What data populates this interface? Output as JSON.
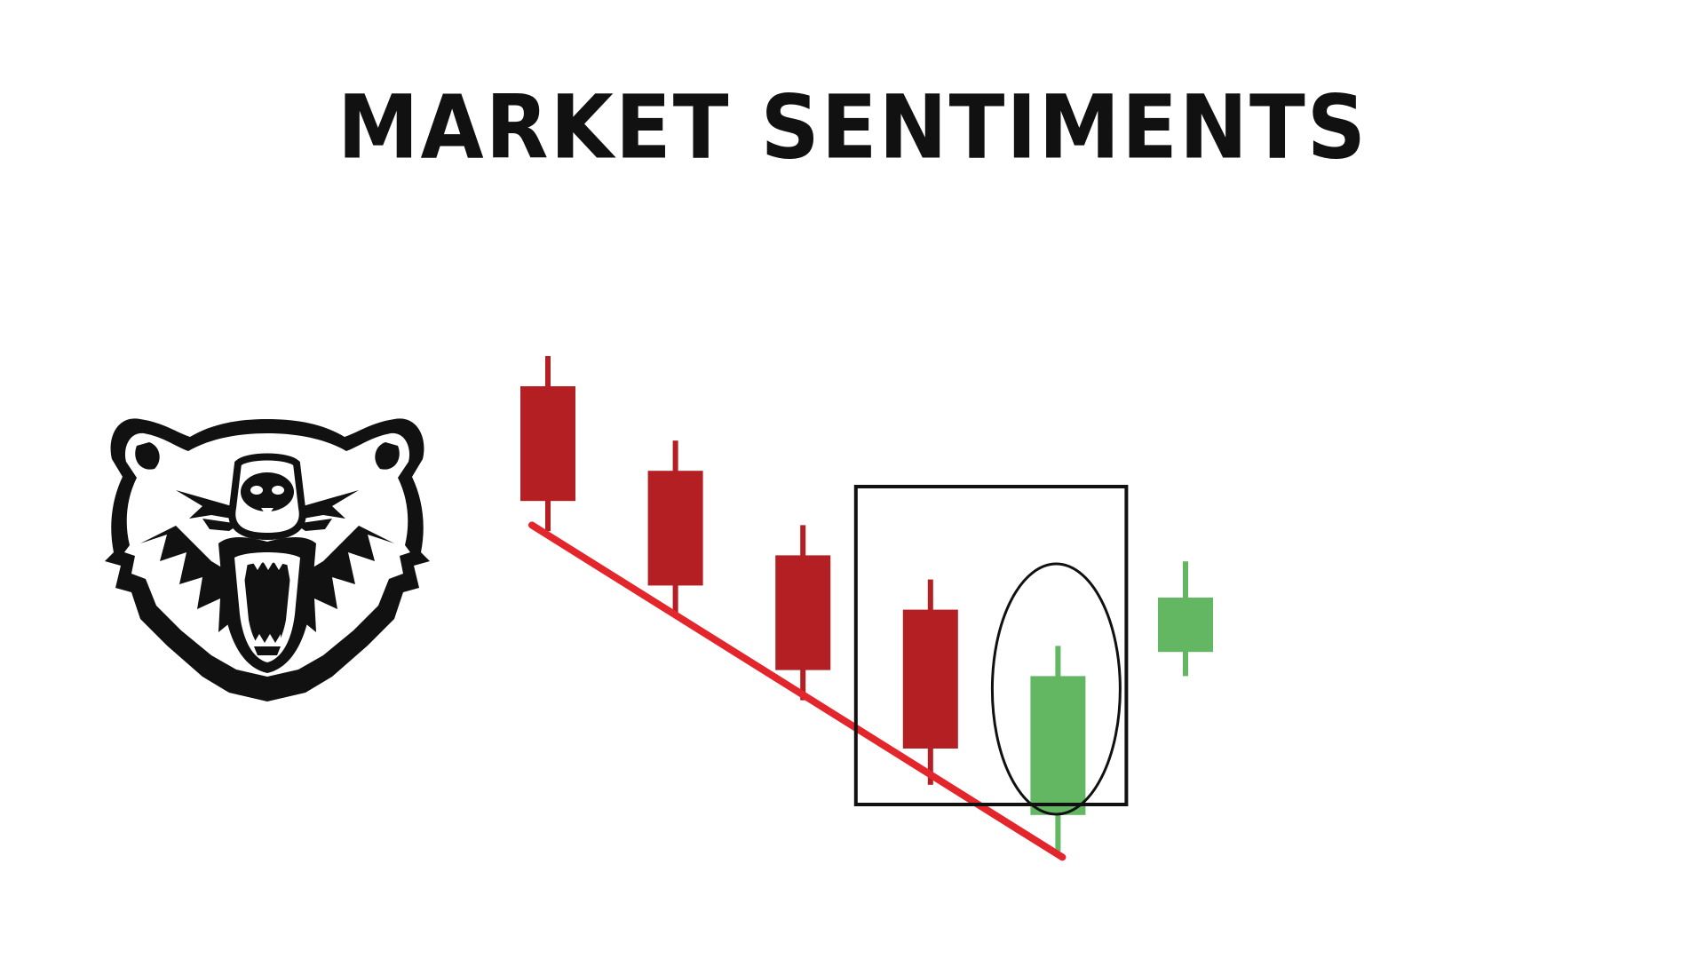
{
  "title": "MARKET SENTIMENTS",
  "logo": {
    "icon": "bear-head-icon"
  },
  "colors": {
    "bearish": "#b41f24",
    "bullish": "#63b662",
    "trendline": "#e2262b",
    "annotation": "#111111",
    "background": "#ffffff"
  },
  "chart_data": {
    "type": "candlestick",
    "title": "",
    "xlabel": "",
    "ylabel": "",
    "ylim": [
      0,
      100
    ],
    "grid": false,
    "candles": [
      {
        "index": 1,
        "open": 85,
        "close": 66,
        "high": 90,
        "low": 61,
        "direction": "bearish"
      },
      {
        "index": 2,
        "open": 71,
        "close": 52,
        "high": 76,
        "low": 47,
        "direction": "bearish"
      },
      {
        "index": 3,
        "open": 57,
        "close": 38,
        "high": 62,
        "low": 33,
        "direction": "bearish"
      },
      {
        "index": 4,
        "open": 48,
        "close": 25,
        "high": 53,
        "low": 19,
        "direction": "bearish"
      },
      {
        "index": 5,
        "open": 14,
        "close": 37,
        "high": 42,
        "low": 8,
        "direction": "bullish"
      },
      {
        "index": 6,
        "open": 41,
        "close": 50,
        "high": 56,
        "low": 37,
        "direction": "bullish"
      }
    ],
    "trendline": {
      "from_index": 1,
      "from_value": 62,
      "to_index": 5,
      "to_value": 7
    },
    "annotations": [
      {
        "type": "box",
        "covers": [
          4,
          5
        ]
      },
      {
        "type": "ellipse",
        "covers": [
          5
        ]
      }
    ]
  }
}
